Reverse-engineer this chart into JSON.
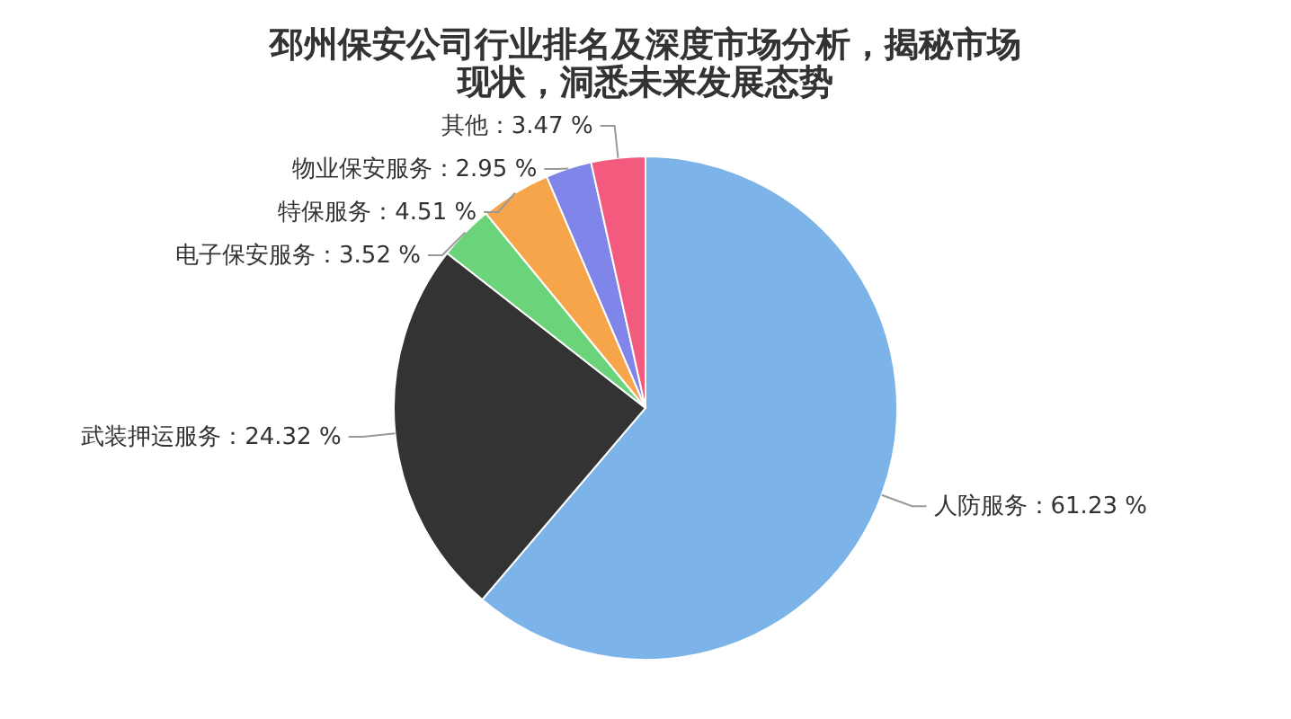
{
  "chart_data": {
    "type": "pie",
    "title": "邳州保安公司行业排名及深度市场分析，揭秘市场现状，洞悉未来发展态势",
    "categories": [
      "人防服务",
      "武装押运服务",
      "电子保安服务",
      "特保服务",
      "物业保安服务",
      "其他"
    ],
    "values": [
      61.23,
      24.32,
      3.52,
      4.51,
      2.95,
      3.47
    ],
    "value_labels": [
      "61.23 %",
      "24.32 %",
      "3.52 %",
      "4.51 %",
      "2.95 %",
      "3.47 %"
    ],
    "colors": [
      "#7cb4ea",
      "#333333",
      "#6bd47a",
      "#f7a54a",
      "#8085e9",
      "#f25a7e"
    ]
  }
}
